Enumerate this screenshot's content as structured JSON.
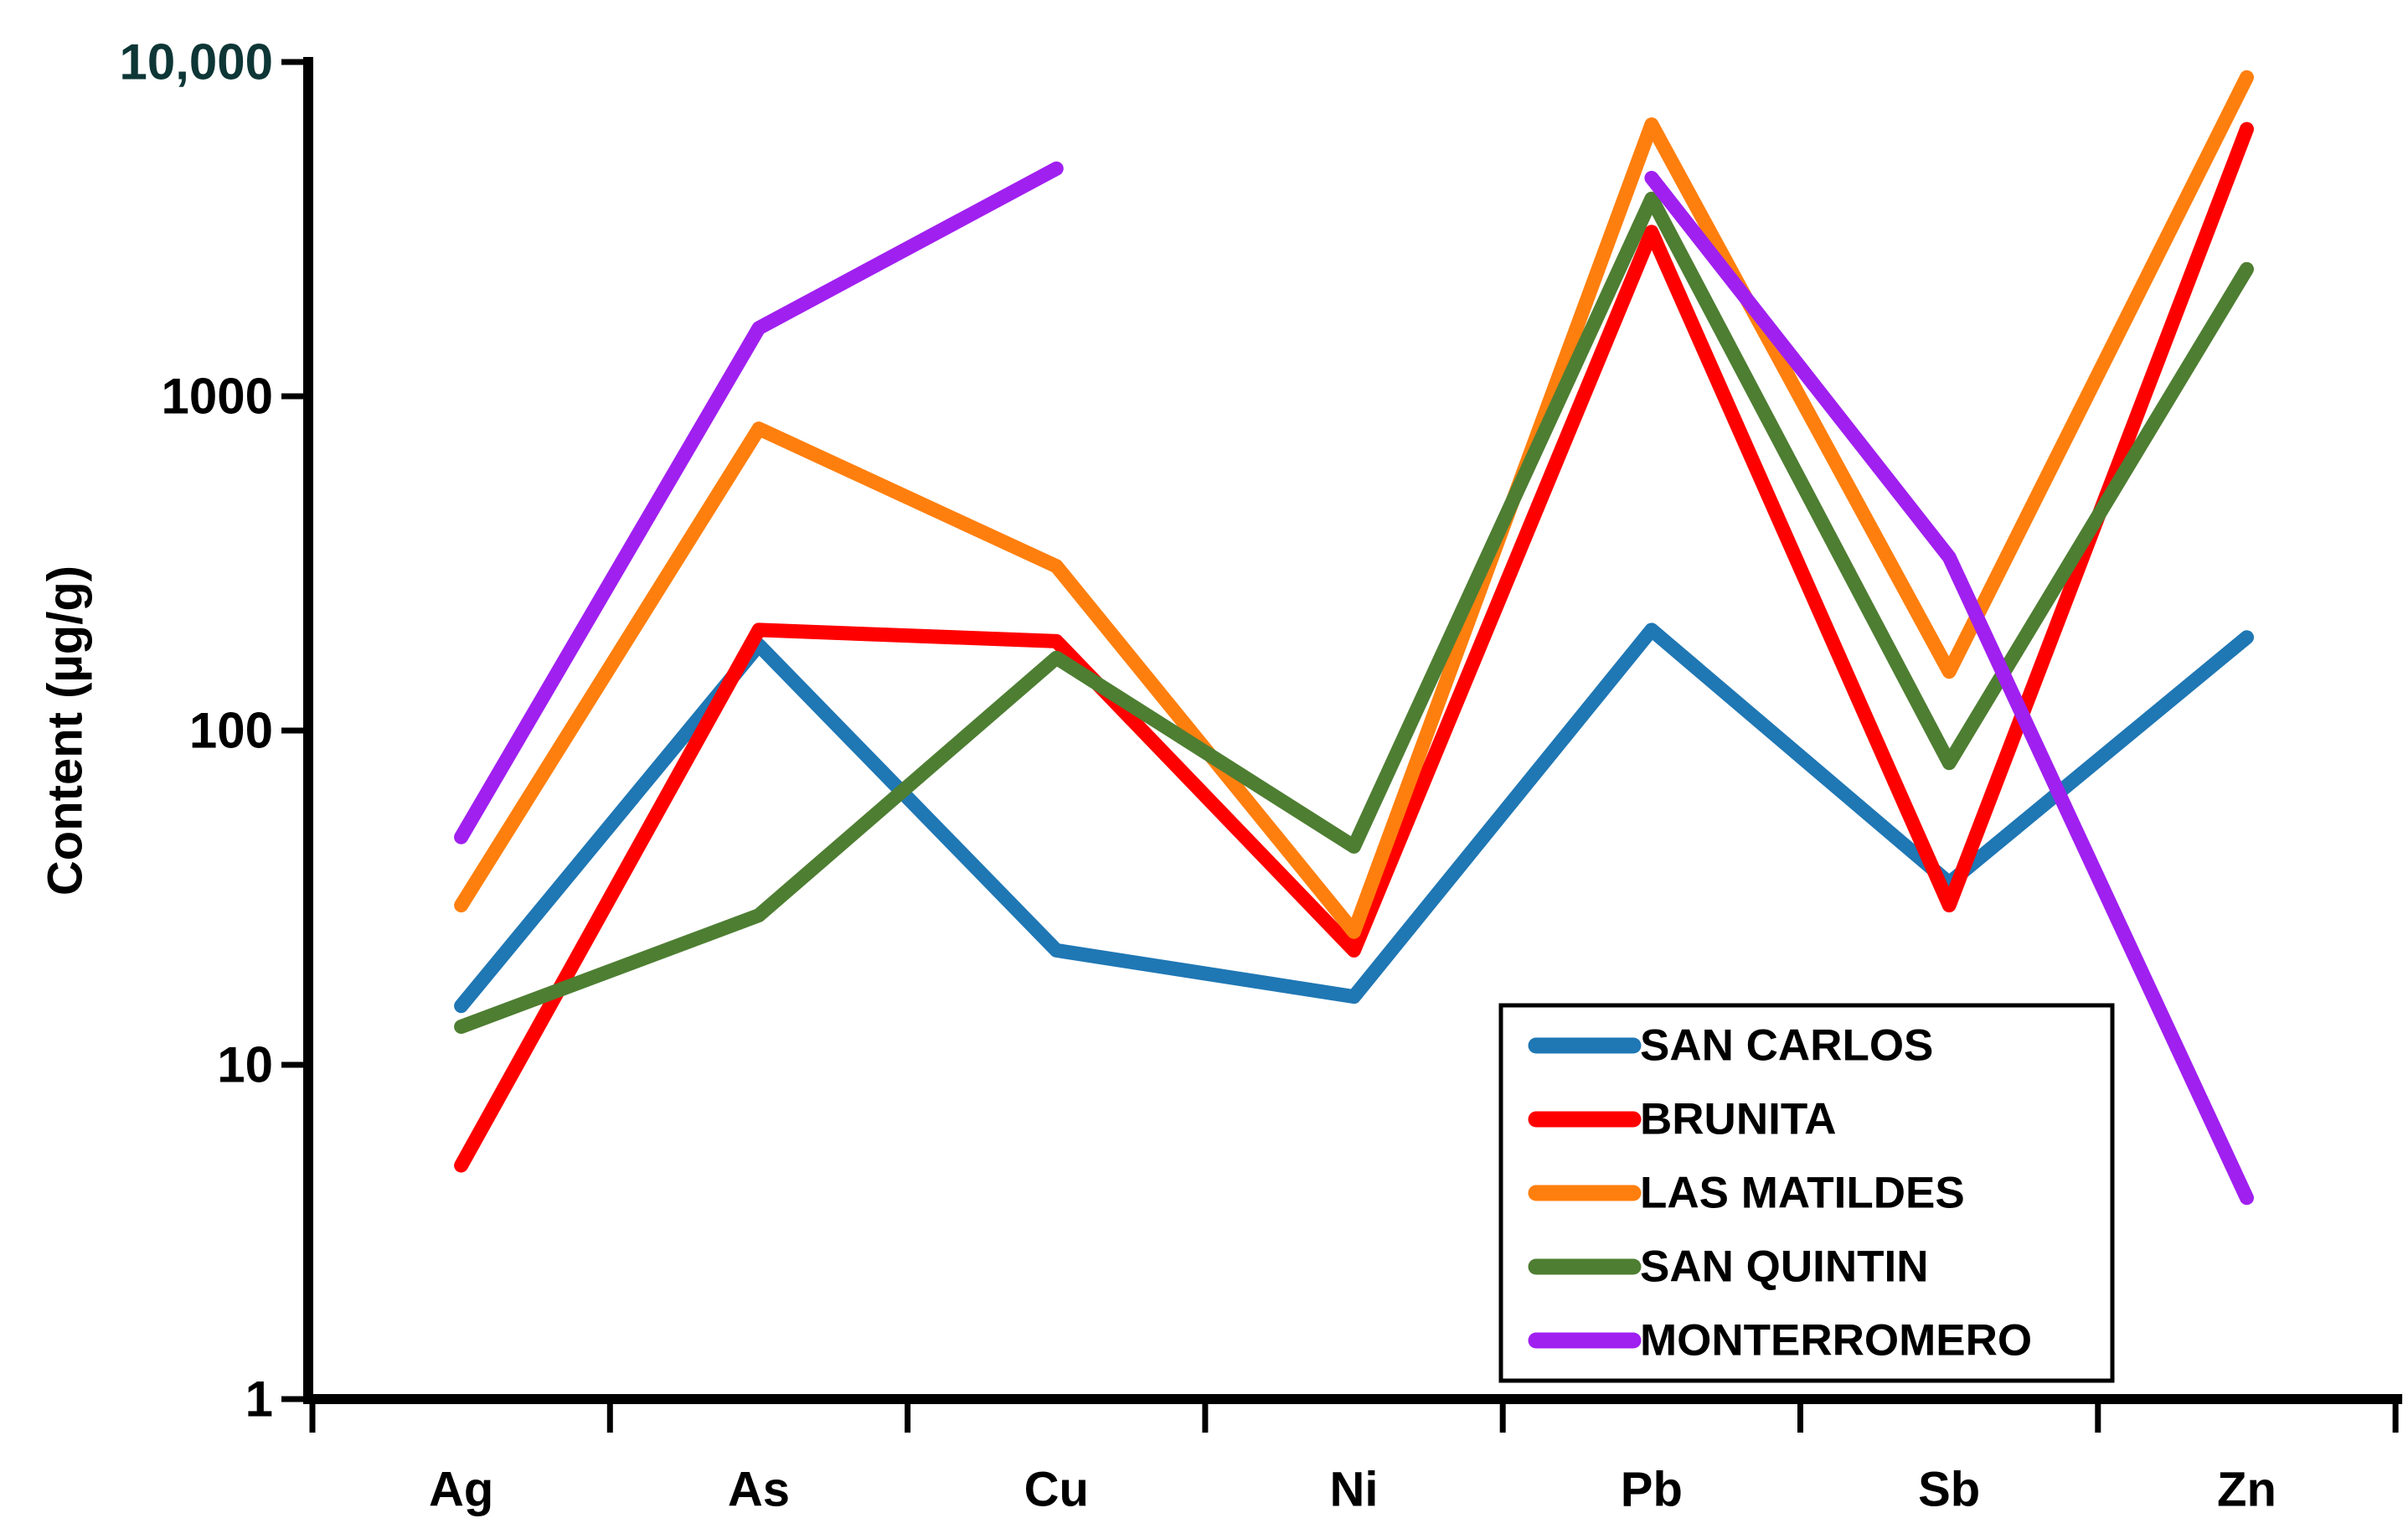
{
  "page": {
    "background": "#ffffff"
  },
  "colors": {
    "axis": "#000000",
    "tick_label": "#000000",
    "top_tick_label": "#0E3636",
    "x_label": "#000000",
    "legend_border": "#000000",
    "legend_background": "#ffffff",
    "legend_text": "#000000"
  },
  "chart_data": {
    "type": "line",
    "title": "",
    "xlabel": "",
    "ylabel": "Content (µg/g)",
    "y_scale": "log",
    "ylim": [
      1,
      10000
    ],
    "grid": false,
    "legend_position": "inside-bottom-right",
    "y_ticks": [
      {
        "label": "10,000",
        "value": 10000,
        "color": "#0E3636"
      },
      {
        "label": "1000",
        "value": 1000,
        "color": "#000000"
      },
      {
        "label": "100",
        "value": 100,
        "color": "#000000"
      },
      {
        "label": "10",
        "value": 10,
        "color": "#000000"
      },
      {
        "label": "1",
        "value": 1,
        "color": "#000000"
      }
    ],
    "categories": [
      "Ag",
      "As",
      "Cu",
      "Ni",
      "Pb",
      "Sb",
      "Zn"
    ],
    "series": [
      {
        "name": "SAN CARLOS",
        "color": "#1F77B4",
        "values": [
          15,
          180,
          22,
          16,
          200,
          35,
          190
        ]
      },
      {
        "name": "BRUNITA",
        "color": "#FF0000",
        "values": [
          5,
          200,
          185,
          22,
          3100,
          30,
          6300
        ]
      },
      {
        "name": "LAS MATILDES",
        "color": "#FF7F0E",
        "values": [
          30,
          800,
          310,
          25,
          6500,
          150,
          9000
        ]
      },
      {
        "name": "SAN QUINTIN",
        "color": "#4E7E32",
        "values": [
          13,
          28,
          165,
          45,
          3900,
          80,
          2400
        ]
      },
      {
        "name": "MONTERROMERO",
        "color": "#A020F0",
        "values": [
          48,
          1600,
          4800,
          null,
          4500,
          330,
          4
        ]
      }
    ]
  }
}
